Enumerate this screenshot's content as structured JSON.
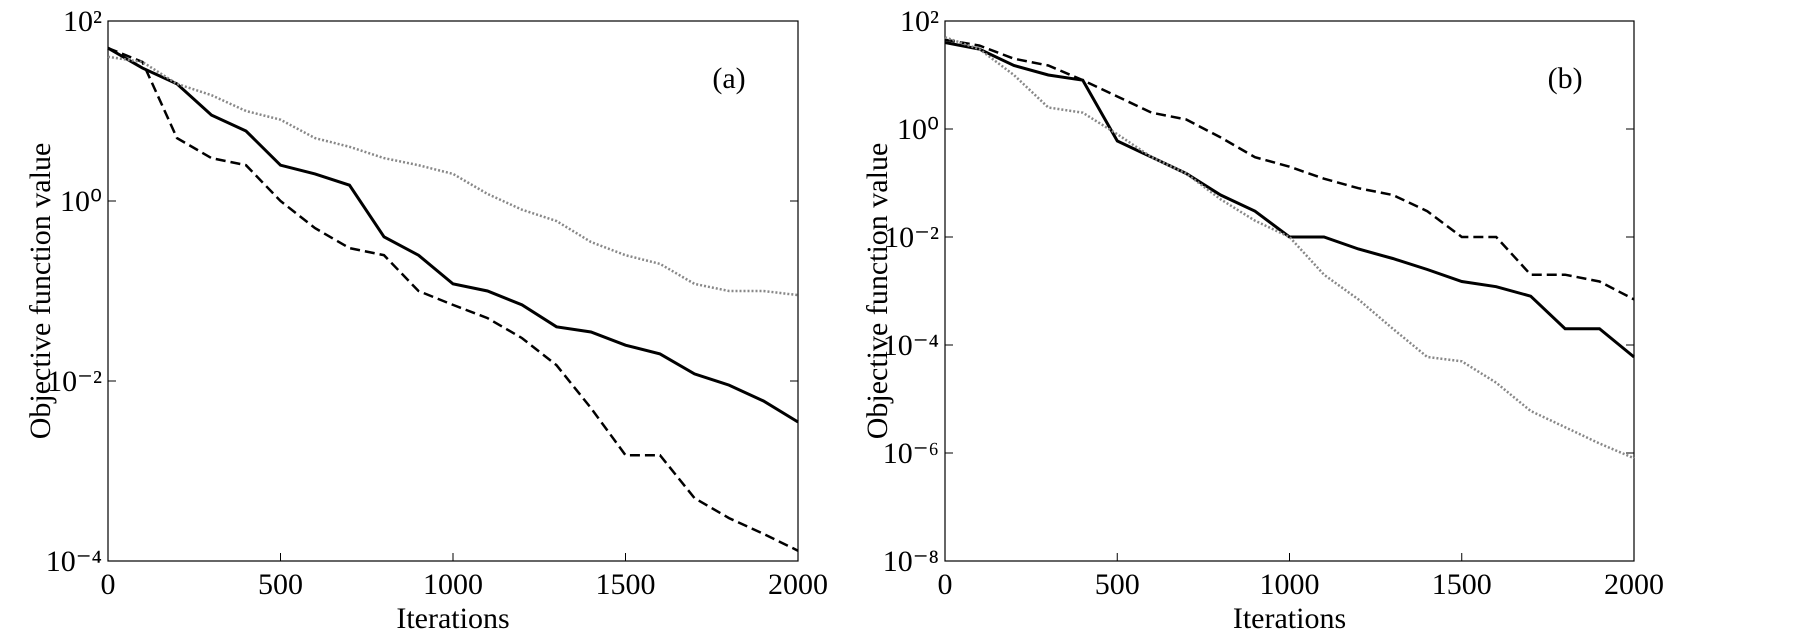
{
  "chart_data": [
    {
      "type": "line",
      "annotation": "(a)",
      "xlabel": "Iterations",
      "ylabel": "Objective function value",
      "yscale": "log",
      "grid": false,
      "xlim": [
        0,
        2000
      ],
      "xticks": [
        0,
        500,
        1000,
        1500,
        2000
      ],
      "ylim": [
        0.0001,
        100
      ],
      "yticks": [
        {
          "value": 0.0001,
          "label": "10⁻⁴"
        },
        {
          "value": 0.01,
          "label": "10⁻²"
        },
        {
          "value": 1,
          "label": "10⁰"
        },
        {
          "value": 100,
          "label": "10²"
        }
      ],
      "x": [
        0,
        100,
        200,
        300,
        400,
        500,
        600,
        700,
        800,
        900,
        1000,
        1100,
        1200,
        1300,
        1400,
        1500,
        1600,
        1700,
        1800,
        1900,
        2000
      ],
      "series": [
        {
          "color": "#000000",
          "dash": "solid",
          "values": [
            50,
            30,
            20,
            9,
            6,
            2.5,
            2,
            1.5,
            0.4,
            0.25,
            0.12,
            0.1,
            0.07,
            0.04,
            0.035,
            0.025,
            0.02,
            0.012,
            0.009,
            0.006,
            0.0035
          ]
        },
        {
          "color": "#000000",
          "dash": "dashed",
          "values": [
            50,
            35,
            5,
            3,
            2.5,
            1,
            0.5,
            0.3,
            0.25,
            0.1,
            0.07,
            0.05,
            0.03,
            0.015,
            0.005,
            0.0015,
            0.0015,
            0.0005,
            0.0003,
            0.0002,
            0.00013
          ]
        },
        {
          "color": "#888888",
          "dash": "dotted",
          "values": [
            40,
            35,
            20,
            15,
            10,
            8,
            5,
            4,
            3,
            2.5,
            2,
            1.2,
            0.8,
            0.6,
            0.35,
            0.25,
            0.2,
            0.12,
            0.1,
            0.1,
            0.09
          ]
        }
      ]
    },
    {
      "type": "line",
      "annotation": "(b)",
      "xlabel": "Iterations",
      "ylabel": "Objective function value",
      "yscale": "log",
      "grid": false,
      "xlim": [
        0,
        2000
      ],
      "xticks": [
        0,
        500,
        1000,
        1500,
        2000
      ],
      "ylim": [
        1e-08,
        100
      ],
      "yticks": [
        {
          "value": 1e-08,
          "label": "10⁻⁸"
        },
        {
          "value": 1e-06,
          "label": "10⁻⁶"
        },
        {
          "value": 0.0001,
          "label": "10⁻⁴"
        },
        {
          "value": 0.01,
          "label": "10⁻²"
        },
        {
          "value": 1,
          "label": "10⁰"
        },
        {
          "value": 100,
          "label": "10²"
        }
      ],
      "x": [
        0,
        100,
        200,
        300,
        400,
        500,
        600,
        700,
        800,
        900,
        1000,
        1100,
        1200,
        1300,
        1400,
        1500,
        1600,
        1700,
        1800,
        1900,
        2000
      ],
      "series": [
        {
          "color": "#000000",
          "dash": "solid",
          "values": [
            40,
            30,
            15,
            10,
            8,
            0.6,
            0.3,
            0.15,
            0.06,
            0.03,
            0.01,
            0.01,
            0.006,
            0.004,
            0.0025,
            0.0015,
            0.0012,
            0.0008,
            0.0002,
            0.0002,
            6e-05
          ]
        },
        {
          "color": "#000000",
          "dash": "dashed",
          "values": [
            45,
            35,
            20,
            15,
            8,
            4,
            2,
            1.5,
            0.7,
            0.3,
            0.2,
            0.12,
            0.08,
            0.06,
            0.03,
            0.01,
            0.01,
            0.002,
            0.002,
            0.0015,
            0.0007
          ]
        },
        {
          "color": "#888888",
          "dash": "dotted",
          "values": [
            50,
            30,
            10,
            2.5,
            2,
            0.8,
            0.3,
            0.15,
            0.05,
            0.02,
            0.01,
            0.002,
            0.0007,
            0.0002,
            6e-05,
            5e-05,
            2e-05,
            6e-06,
            3e-06,
            1.5e-06,
            8e-07
          ]
        }
      ]
    }
  ]
}
